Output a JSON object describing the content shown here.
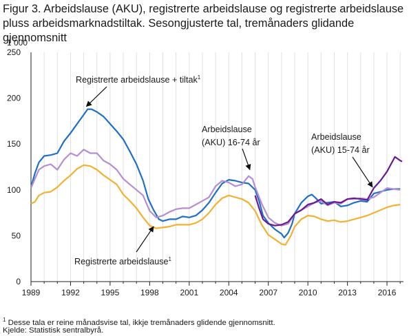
{
  "title": "Figur 3. Arbeidslause (AKU), registrerte arbeidslause og registrerte arbeidslause pluss arbeidsmarknadstiltak. Sesongjusterte tal, tremånaders glidande gjennomsnitt",
  "footnote": "Desse tala er reine månadsvise tal, ikkje tremånaders glidende gjennomsnitt.",
  "footnote_mark": "1",
  "source": "Kjelde: Statistisk sentralbyrå.",
  "colors": {
    "registrerte": "#f2b130",
    "tiltak": "#1e6fc8",
    "aku1674": "#b58ed1",
    "aku1574": "#6a1a8f",
    "grid": "#e0e0e0",
    "axis": "#222222"
  },
  "annotations": {
    "tiltak": {
      "text": "Registrerte  arbeidslause  + tiltak",
      "mark": "1"
    },
    "registrerte": {
      "text": "Registrerte  arbeidslause",
      "mark": "1"
    },
    "aku1674": {
      "line1": "Arbeidslause",
      "line2": "(AKU) 16-74  år"
    },
    "aku1574": {
      "line1": "Arbeidslause",
      "line2": "(AKU) 15-74  år"
    }
  },
  "chart_data": {
    "type": "line",
    "ylabel": "1 000",
    "ylim": [
      0,
      250
    ],
    "yticks": [
      0,
      50,
      100,
      150,
      200,
      250
    ],
    "xlim": [
      1989,
      2017.25
    ],
    "xticks": [
      1989,
      1992,
      1995,
      1998,
      2001,
      2004,
      2007,
      2010,
      2013,
      2016
    ],
    "grid": "vertical",
    "series": [
      {
        "name": "Registrerte arbeidslause + tiltak",
        "color": "#1e6fc8",
        "points": [
          [
            1989,
            103
          ],
          [
            1989.3,
            118
          ],
          [
            1989.6,
            130
          ],
          [
            1990,
            137
          ],
          [
            1990.5,
            138
          ],
          [
            1991,
            140
          ],
          [
            1991.5,
            153
          ],
          [
            1992,
            162
          ],
          [
            1992.5,
            172
          ],
          [
            1993,
            182
          ],
          [
            1993.3,
            188
          ],
          [
            1993.6,
            188
          ],
          [
            1994,
            185
          ],
          [
            1994.5,
            180
          ],
          [
            1995,
            172
          ],
          [
            1995.5,
            164
          ],
          [
            1996,
            155
          ],
          [
            1996.5,
            142
          ],
          [
            1997,
            128
          ],
          [
            1997.5,
            110
          ],
          [
            1997.9,
            90
          ],
          [
            1998.3,
            78
          ],
          [
            1998.7,
            68
          ],
          [
            1999,
            66
          ],
          [
            1999.5,
            68
          ],
          [
            2000,
            68
          ],
          [
            2000.5,
            71
          ],
          [
            2001,
            70
          ],
          [
            2001.5,
            72
          ],
          [
            2002,
            78
          ],
          [
            2002.5,
            86
          ],
          [
            2003,
            97
          ],
          [
            2003.5,
            107
          ],
          [
            2004,
            111
          ],
          [
            2004.5,
            110
          ],
          [
            2005,
            108
          ],
          [
            2005.5,
            107
          ],
          [
            2006,
            100
          ],
          [
            2006.3,
            88
          ],
          [
            2006.6,
            72
          ],
          [
            2007,
            64
          ],
          [
            2007.5,
            57
          ],
          [
            2008,
            52
          ],
          [
            2008.2,
            48
          ],
          [
            2008.5,
            53
          ],
          [
            2008.8,
            63
          ],
          [
            2009,
            74
          ],
          [
            2009.5,
            86
          ],
          [
            2010,
            93
          ],
          [
            2010.3,
            95
          ],
          [
            2010.6,
            91
          ],
          [
            2011,
            85
          ],
          [
            2011.5,
            86
          ],
          [
            2012,
            87
          ],
          [
            2012.5,
            82
          ],
          [
            2013,
            83
          ],
          [
            2013.5,
            86
          ],
          [
            2014,
            88
          ],
          [
            2014.5,
            87
          ],
          [
            2015,
            96
          ],
          [
            2015.5,
            98
          ],
          [
            2016,
            100
          ],
          [
            2016.5,
            101
          ],
          [
            2017,
            101
          ]
        ]
      },
      {
        "name": "Registrerte arbeidslause",
        "color": "#f2b130",
        "points": [
          [
            1989,
            85
          ],
          [
            1989.3,
            87
          ],
          [
            1989.6,
            94
          ],
          [
            1990,
            97
          ],
          [
            1990.5,
            98
          ],
          [
            1991,
            103
          ],
          [
            1991.5,
            110
          ],
          [
            1992,
            116
          ],
          [
            1992.5,
            123
          ],
          [
            1993,
            127
          ],
          [
            1993.5,
            126
          ],
          [
            1994,
            122
          ],
          [
            1994.5,
            116
          ],
          [
            1995,
            111
          ],
          [
            1995.5,
            106
          ],
          [
            1996,
            95
          ],
          [
            1996.5,
            88
          ],
          [
            1997,
            80
          ],
          [
            1997.5,
            70
          ],
          [
            1998,
            61
          ],
          [
            1998.5,
            58
          ],
          [
            1999,
            59
          ],
          [
            1999.5,
            60
          ],
          [
            2000,
            62
          ],
          [
            2000.5,
            62
          ],
          [
            2001,
            62
          ],
          [
            2001.5,
            64
          ],
          [
            2002,
            68
          ],
          [
            2002.5,
            75
          ],
          [
            2003,
            84
          ],
          [
            2003.5,
            91
          ],
          [
            2004,
            94
          ],
          [
            2004.5,
            92
          ],
          [
            2005,
            90
          ],
          [
            2005.5,
            86
          ],
          [
            2006,
            77
          ],
          [
            2006.5,
            62
          ],
          [
            2007,
            51
          ],
          [
            2007.5,
            46
          ],
          [
            2008,
            41
          ],
          [
            2008.3,
            40
          ],
          [
            2008.7,
            50
          ],
          [
            2009,
            60
          ],
          [
            2009.5,
            68
          ],
          [
            2010,
            72
          ],
          [
            2010.5,
            71
          ],
          [
            2011,
            68
          ],
          [
            2011.5,
            66
          ],
          [
            2012,
            67
          ],
          [
            2012.5,
            65
          ],
          [
            2013,
            66
          ],
          [
            2013.5,
            68
          ],
          [
            2014,
            70
          ],
          [
            2014.5,
            72
          ],
          [
            2015,
            75
          ],
          [
            2015.5,
            78
          ],
          [
            2016,
            81
          ],
          [
            2016.5,
            83
          ],
          [
            2017,
            84
          ]
        ]
      },
      {
        "name": "Arbeidslause (AKU) 16-74 år",
        "color": "#b58ed1",
        "points": [
          [
            1989,
            102
          ],
          [
            1989.3,
            112
          ],
          [
            1989.6,
            122
          ],
          [
            1990,
            126
          ],
          [
            1990.5,
            128
          ],
          [
            1991,
            122
          ],
          [
            1991.5,
            133
          ],
          [
            1992,
            140
          ],
          [
            1992.5,
            137
          ],
          [
            1993,
            144
          ],
          [
            1993.5,
            140
          ],
          [
            1994,
            140
          ],
          [
            1994.5,
            132
          ],
          [
            1995,
            128
          ],
          [
            1995.5,
            122
          ],
          [
            1996,
            112
          ],
          [
            1996.5,
            106
          ],
          [
            1997,
            100
          ],
          [
            1997.5,
            94
          ],
          [
            1998,
            77
          ],
          [
            1998.5,
            70
          ],
          [
            1999,
            72
          ],
          [
            1999.5,
            76
          ],
          [
            2000,
            79
          ],
          [
            2000.5,
            80
          ],
          [
            2001,
            80
          ],
          [
            2001.5,
            84
          ],
          [
            2002,
            88
          ],
          [
            2002.5,
            92
          ],
          [
            2003,
            104
          ],
          [
            2003.5,
            110
          ],
          [
            2004,
            108
          ],
          [
            2004.5,
            104
          ],
          [
            2005,
            106
          ],
          [
            2005.5,
            115
          ],
          [
            2005.8,
            112
          ],
          [
            2006,
            103
          ],
          [
            2006.5,
            85
          ],
          [
            2007,
            70
          ],
          [
            2007.5,
            64
          ],
          [
            2008,
            61
          ],
          [
            2008.5,
            63
          ],
          [
            2009,
            74
          ],
          [
            2009.5,
            78
          ],
          [
            2010,
            82
          ],
          [
            2010.5,
            86
          ],
          [
            2011,
            88
          ],
          [
            2011.5,
            83
          ],
          [
            2012,
            86
          ],
          [
            2012.5,
            85
          ],
          [
            2013,
            90
          ],
          [
            2013.5,
            90
          ],
          [
            2014,
            91
          ],
          [
            2014.5,
            90
          ],
          [
            2015,
            92
          ],
          [
            2015.5,
            97
          ],
          [
            2016,
            102
          ],
          [
            2016.5,
            101
          ],
          [
            2017,
            100
          ]
        ]
      },
      {
        "name": "Arbeidslause (AKU) 15-74 år",
        "color": "#6a1a8f",
        "points": [
          [
            2006,
            94
          ],
          [
            2006.3,
            80
          ],
          [
            2006.6,
            68
          ],
          [
            2007,
            63
          ],
          [
            2007.5,
            61
          ],
          [
            2008,
            62
          ],
          [
            2008.5,
            65
          ],
          [
            2009,
            74
          ],
          [
            2009.5,
            78
          ],
          [
            2010,
            84
          ],
          [
            2010.5,
            86
          ],
          [
            2011,
            90
          ],
          [
            2011.5,
            84
          ],
          [
            2012,
            87
          ],
          [
            2012.5,
            86
          ],
          [
            2013,
            90
          ],
          [
            2013.5,
            91
          ],
          [
            2014,
            90
          ],
          [
            2014.5,
            89
          ],
          [
            2015,
            102
          ],
          [
            2015.5,
            110
          ],
          [
            2016,
            120
          ],
          [
            2016.3,
            128
          ],
          [
            2016.6,
            136
          ],
          [
            2016.8,
            134
          ],
          [
            2017,
            132
          ],
          [
            2017.15,
            131
          ]
        ]
      }
    ]
  }
}
